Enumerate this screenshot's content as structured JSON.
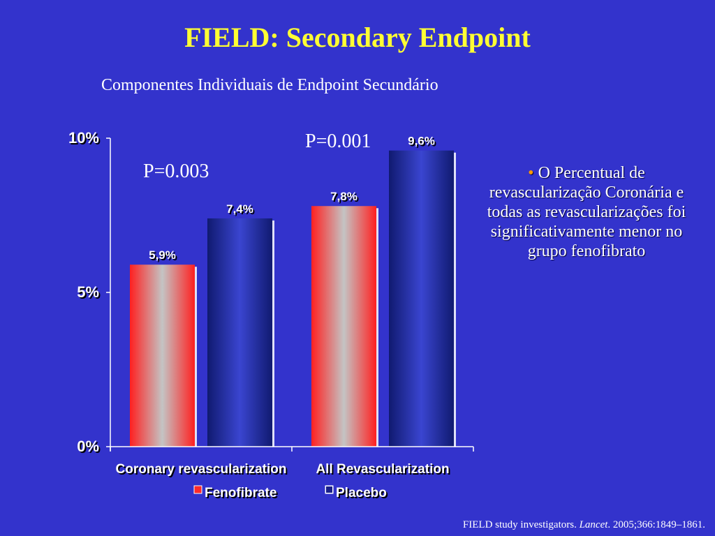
{
  "slide": {
    "title": "FIELD: Secondary Endpoint",
    "subtitle": "Componentes Individuais de Endpoint Secundário",
    "pvalues": [
      "P=0.003",
      "P=0.001"
    ],
    "bullet": {
      "marker": "•",
      "text": "O Percentual de revascularização Coronária e todas as revascularizações foi significativamente menor no grupo fenofibrato"
    },
    "footer": {
      "authors": "FIELD study investigators.",
      "journal": "Lancet",
      "citation": ". 2005;366:1849–1861."
    }
  },
  "chart_data": {
    "type": "bar",
    "categories": [
      "Coronary revascularization",
      "All Revascularization"
    ],
    "series": [
      {
        "name": "Fenofibrate",
        "values": [
          5.9,
          7.8
        ],
        "labels": [
          "5,9%",
          "7,8%"
        ],
        "color": "#ff2a2a"
      },
      {
        "name": "Placebo",
        "values": [
          7.4,
          9.6
        ],
        "labels": [
          "7,4%",
          "9,6%"
        ],
        "color": "#1a1f8a"
      }
    ],
    "ylim": [
      0,
      10
    ],
    "yticks": [
      0,
      5,
      10
    ],
    "ytick_labels": [
      "0%",
      "5%",
      "10%"
    ],
    "legend_position": "bottom",
    "grid": false
  }
}
